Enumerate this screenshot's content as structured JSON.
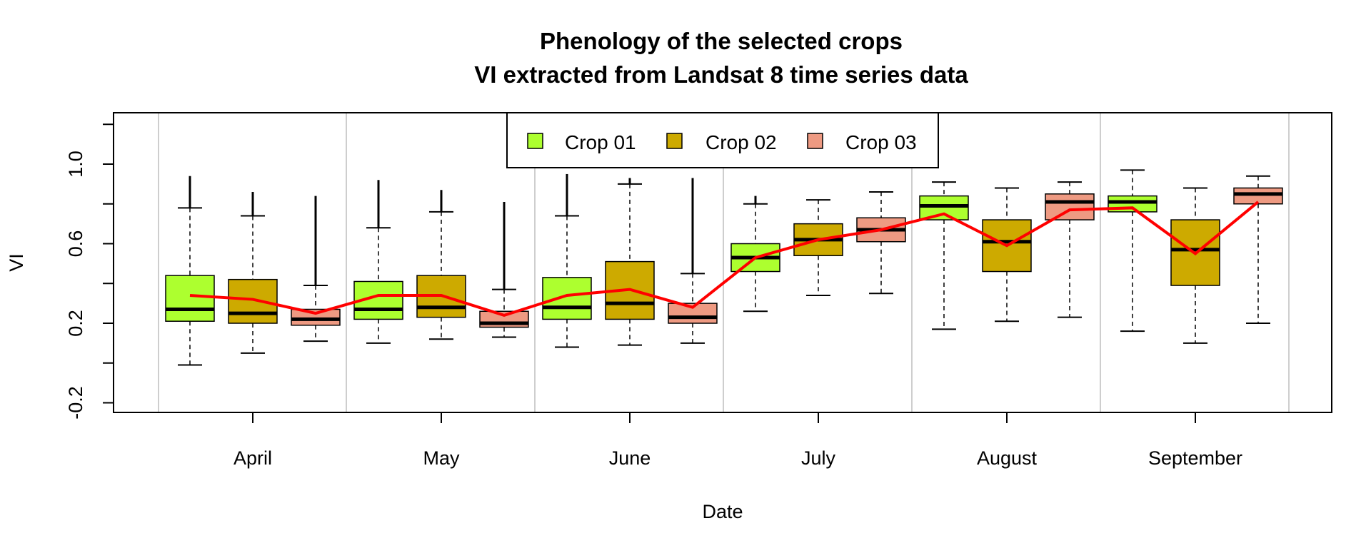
{
  "chart_data": {
    "type": "box",
    "title": [
      "Phenology of the selected crops",
      "VI extracted from Landsat 8 time series data"
    ],
    "xlabel": "Date",
    "ylabel": "VI",
    "ylim": [
      -0.25,
      1.25
    ],
    "y_ticks": [
      -0.2,
      0.2,
      0.6,
      1.0
    ],
    "y_tick_labels": [
      "-0.2",
      "0.2",
      "0.6",
      "1.0"
    ],
    "categories": [
      "April",
      "May",
      "June",
      "July",
      "August",
      "September"
    ],
    "grid": "vertical lines between months",
    "legend": {
      "position": "top-center",
      "entries": [
        {
          "name": "Crop 01",
          "color": "#ADFF2F"
        },
        {
          "name": "Crop 02",
          "color": "#CDAA00"
        },
        {
          "name": "Crop 03",
          "color": "#EE9A82"
        }
      ]
    },
    "series": [
      {
        "name": "Crop 01",
        "color": "#ADFF2F",
        "boxes": [
          {
            "month": "April",
            "min": -0.01,
            "q1": 0.21,
            "median": 0.27,
            "q3": 0.44,
            "max": 0.78,
            "outlier_max": 0.94
          },
          {
            "month": "May",
            "min": 0.1,
            "q1": 0.22,
            "median": 0.27,
            "q3": 0.41,
            "max": 0.68,
            "outlier_max": 0.92
          },
          {
            "month": "June",
            "min": 0.08,
            "q1": 0.22,
            "median": 0.28,
            "q3": 0.43,
            "max": 0.74,
            "outlier_max": 0.95
          },
          {
            "month": "July",
            "min": 0.26,
            "q1": 0.46,
            "median": 0.53,
            "q3": 0.6,
            "max": 0.8,
            "outlier_max": 0.84
          },
          {
            "month": "August",
            "min": 0.17,
            "q1": 0.72,
            "median": 0.79,
            "q3": 0.84,
            "max": 0.91,
            "outlier_min": 0.17,
            "outlier_max": 0.91
          },
          {
            "month": "September",
            "min": 0.16,
            "q1": 0.76,
            "median": 0.81,
            "q3": 0.84,
            "max": 0.97,
            "outlier_min": 0.16
          }
        ]
      },
      {
        "name": "Crop 02",
        "color": "#CDAA00",
        "boxes": [
          {
            "month": "April",
            "min": 0.05,
            "q1": 0.2,
            "median": 0.25,
            "q3": 0.42,
            "max": 0.74,
            "outlier_max": 0.86
          },
          {
            "month": "May",
            "min": 0.12,
            "q1": 0.23,
            "median": 0.28,
            "q3": 0.44,
            "max": 0.76,
            "outlier_max": 0.87
          },
          {
            "month": "June",
            "min": 0.09,
            "q1": 0.22,
            "median": 0.3,
            "q3": 0.51,
            "max": 0.9,
            "outlier_max": 0.93
          },
          {
            "month": "July",
            "min": 0.34,
            "q1": 0.54,
            "median": 0.62,
            "q3": 0.7,
            "max": 0.82
          },
          {
            "month": "August",
            "min": 0.21,
            "q1": 0.46,
            "median": 0.61,
            "q3": 0.72,
            "max": 0.88
          },
          {
            "month": "September",
            "min": 0.1,
            "q1": 0.39,
            "median": 0.57,
            "q3": 0.72,
            "max": 0.88
          }
        ]
      },
      {
        "name": "Crop 03",
        "color": "#EE9A82",
        "boxes": [
          {
            "month": "April",
            "min": 0.11,
            "q1": 0.19,
            "median": 0.22,
            "q3": 0.27,
            "max": 0.39,
            "outlier_max": 0.84
          },
          {
            "month": "May",
            "min": 0.13,
            "q1": 0.18,
            "median": 0.2,
            "q3": 0.26,
            "max": 0.37,
            "outlier_max": 0.81
          },
          {
            "month": "June",
            "min": 0.1,
            "q1": 0.2,
            "median": 0.23,
            "q3": 0.3,
            "max": 0.45,
            "outlier_max": 0.93
          },
          {
            "month": "July",
            "min": 0.35,
            "q1": 0.61,
            "median": 0.67,
            "q3": 0.73,
            "max": 0.86,
            "outlier_min": 0.35
          },
          {
            "month": "August",
            "min": 0.23,
            "q1": 0.72,
            "median": 0.81,
            "q3": 0.85,
            "max": 0.91,
            "outlier_min": 0.23
          },
          {
            "month": "September",
            "min": 0.2,
            "q1": 0.8,
            "median": 0.85,
            "q3": 0.88,
            "max": 0.94,
            "outlier_min": 0.2
          }
        ]
      }
    ],
    "mean_line": {
      "color": "#FF0000",
      "values": [
        0.34,
        0.32,
        0.25,
        0.34,
        0.34,
        0.24,
        0.34,
        0.37,
        0.28,
        0.53,
        0.62,
        0.67,
        0.75,
        0.59,
        0.77,
        0.78,
        0.55,
        0.81
      ]
    }
  }
}
